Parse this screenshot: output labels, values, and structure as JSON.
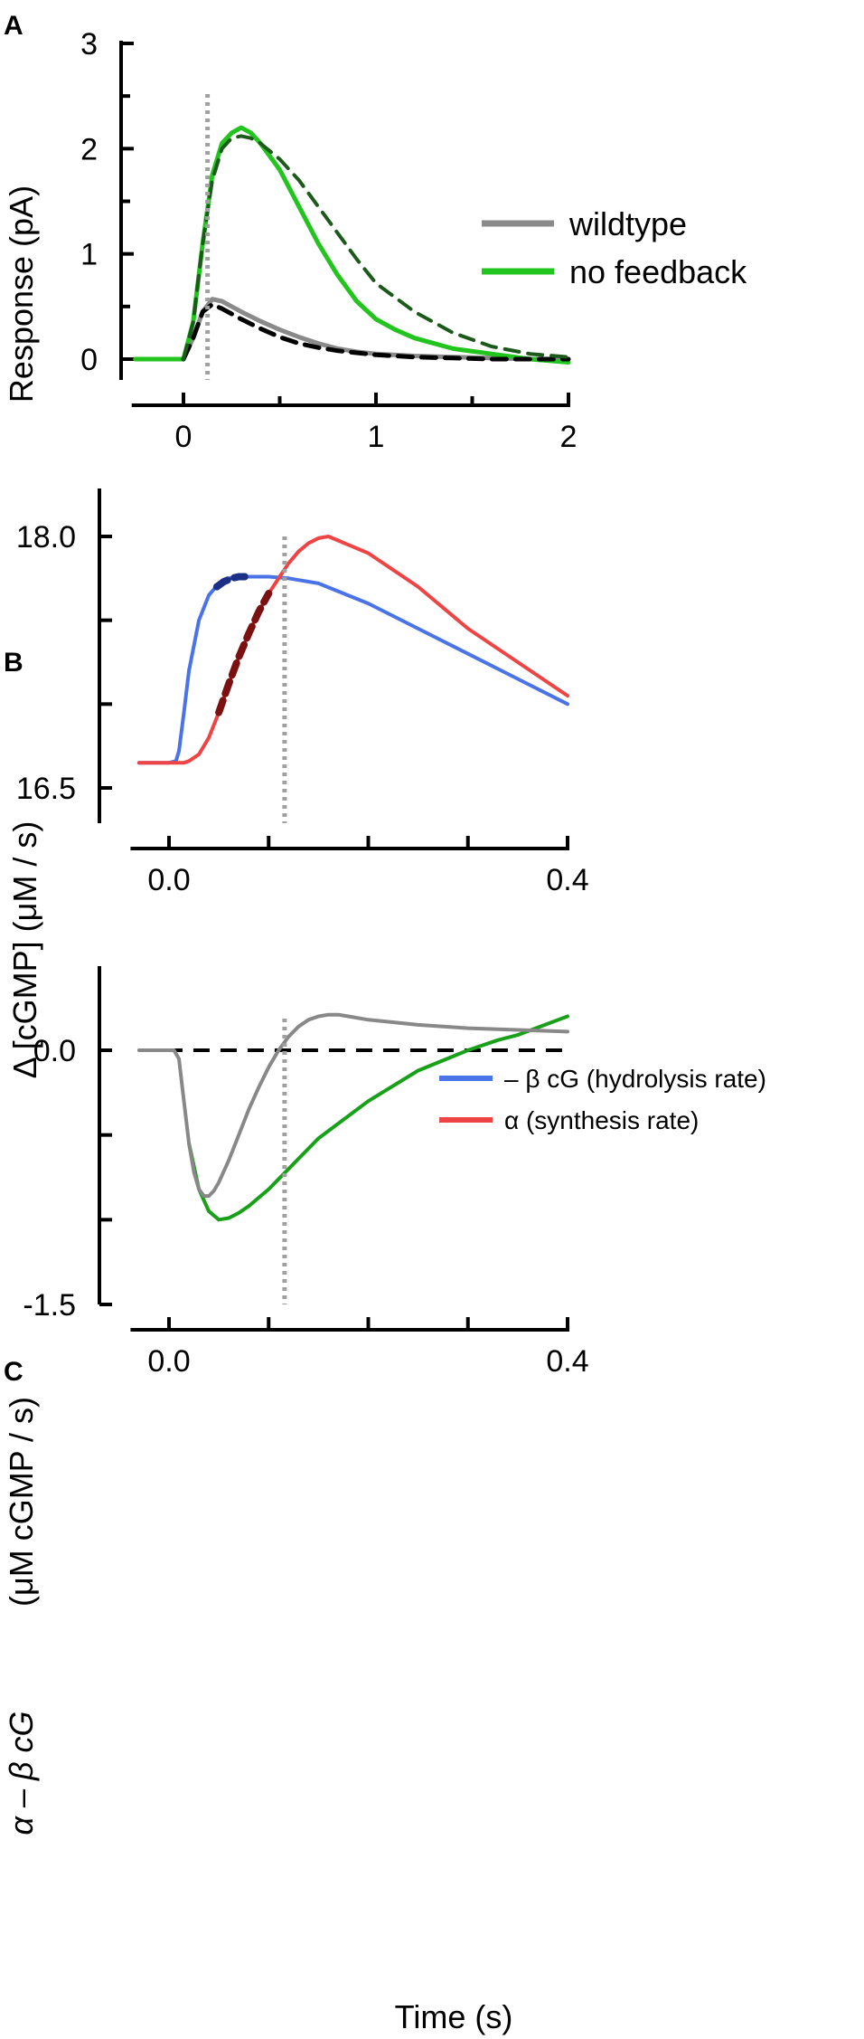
{
  "colors": {
    "wildtype": "#8a8a8a",
    "no_feedback": "#22c41e",
    "fit_wildtype": "#000000",
    "fit_no_feedback": "#1b5a1b",
    "hydrolysis": "#4b73e8",
    "synthesis": "#ee4444",
    "hydrolysis_dash": "#1a2f86",
    "synthesis_dash": "#7a1010",
    "diff_wildtype": "#888888",
    "diff_no_feedback": "#19a019",
    "marker": "#a0a0a0"
  },
  "chart_data": [
    {
      "panel": "A",
      "type": "line",
      "ylabel": "Response (pA)",
      "xlabel": "",
      "xlim": [
        -0.25,
        2.0
      ],
      "ylim": [
        -0.2,
        3.0
      ],
      "xticks": [
        0,
        1,
        2
      ],
      "xticklabels": [
        "0",
        "1",
        "2"
      ],
      "yticks": [
        0,
        1,
        2,
        3
      ],
      "yticklabels": [
        "0",
        "1",
        "2",
        "3"
      ],
      "marker_x": 0.125,
      "legend": [
        "wildtype",
        "no feedback"
      ],
      "legend_position": "top-right",
      "series": [
        {
          "name": "wildtype",
          "style": "solid",
          "x": [
            -0.25,
            0,
            0.05,
            0.1,
            0.15,
            0.2,
            0.25,
            0.3,
            0.4,
            0.5,
            0.6,
            0.7,
            0.8,
            0.9,
            1.0,
            1.2,
            1.4,
            1.6,
            1.8,
            2.0
          ],
          "y": [
            0,
            0,
            0.2,
            0.45,
            0.57,
            0.55,
            0.5,
            0.45,
            0.36,
            0.28,
            0.21,
            0.15,
            0.1,
            0.07,
            0.05,
            0.03,
            0.02,
            0.01,
            0.0,
            0.0
          ]
        },
        {
          "name": "no feedback",
          "style": "solid",
          "x": [
            -0.25,
            0,
            0.05,
            0.1,
            0.15,
            0.2,
            0.25,
            0.3,
            0.35,
            0.4,
            0.5,
            0.6,
            0.7,
            0.8,
            0.9,
            1.0,
            1.1,
            1.2,
            1.4,
            1.6,
            1.8,
            2.0
          ],
          "y": [
            0,
            0,
            0.35,
            1.1,
            1.75,
            2.05,
            2.15,
            2.2,
            2.15,
            2.05,
            1.8,
            1.45,
            1.1,
            0.8,
            0.55,
            0.38,
            0.28,
            0.2,
            0.1,
            0.05,
            0.0,
            -0.03
          ]
        },
        {
          "name": "wildtype fit",
          "style": "dashed",
          "x": [
            0,
            0.05,
            0.1,
            0.15,
            0.2,
            0.3,
            0.4,
            0.5,
            0.6,
            0.7,
            0.8,
            0.9,
            1.0,
            1.2,
            1.4,
            1.6,
            1.8,
            2.0
          ],
          "y": [
            0,
            0.2,
            0.45,
            0.52,
            0.48,
            0.38,
            0.29,
            0.21,
            0.15,
            0.11,
            0.08,
            0.06,
            0.04,
            0.02,
            0.01,
            0.0,
            0.0,
            0.0
          ]
        },
        {
          "name": "no feedback fit",
          "style": "dashed",
          "x": [
            0,
            0.05,
            0.1,
            0.15,
            0.2,
            0.25,
            0.3,
            0.35,
            0.4,
            0.5,
            0.6,
            0.7,
            0.8,
            0.9,
            1.0,
            1.2,
            1.4,
            1.6,
            1.8,
            2.0
          ],
          "y": [
            0,
            0.35,
            1.1,
            1.7,
            2.0,
            2.1,
            2.12,
            2.1,
            2.05,
            1.9,
            1.7,
            1.45,
            1.2,
            0.95,
            0.72,
            0.45,
            0.25,
            0.12,
            0.05,
            0.02
          ]
        }
      ]
    },
    {
      "panel": "B",
      "type": "line",
      "ylabel": "Δ [cGMP]  (μM / s)",
      "xlabel": "",
      "xlim": [
        -0.035,
        0.4
      ],
      "ylim": [
        16.3,
        18.35
      ],
      "xticks": [
        0,
        0.1,
        0.2,
        0.3,
        0.4
      ],
      "xticklabels": [
        "0.0",
        "",
        "",
        "",
        "0.4"
      ],
      "yticks": [
        16.5,
        17.0,
        17.5,
        18.0
      ],
      "yticklabels": [
        "16.5",
        "",
        "",
        "18.0"
      ],
      "marker_x": 0.116,
      "legend": [
        "– β cG (hydrolysis rate)",
        "α (synthesis rate)"
      ],
      "legend_position": "bottom-right",
      "series": [
        {
          "name": "– β cG (hydrolysis rate)",
          "style": "solid",
          "x": [
            -0.03,
            0.0,
            0.007,
            0.01,
            0.015,
            0.02,
            0.03,
            0.04,
            0.05,
            0.06,
            0.07,
            0.08,
            0.1,
            0.12,
            0.15,
            0.2,
            0.25,
            0.3,
            0.35,
            0.4
          ],
          "y": [
            16.65,
            16.65,
            16.66,
            16.72,
            16.95,
            17.2,
            17.5,
            17.65,
            17.72,
            17.75,
            17.76,
            17.76,
            17.76,
            17.75,
            17.72,
            17.6,
            17.45,
            17.3,
            17.15,
            17.0
          ]
        },
        {
          "name": "α (synthesis rate)",
          "style": "solid",
          "x": [
            -0.03,
            0.0,
            0.015,
            0.02,
            0.03,
            0.04,
            0.05,
            0.06,
            0.07,
            0.08,
            0.09,
            0.1,
            0.11,
            0.12,
            0.13,
            0.14,
            0.15,
            0.16,
            0.2,
            0.25,
            0.3,
            0.35,
            0.4
          ],
          "y": [
            16.65,
            16.65,
            16.65,
            16.66,
            16.7,
            16.8,
            16.95,
            17.12,
            17.28,
            17.42,
            17.55,
            17.66,
            17.75,
            17.84,
            17.91,
            17.96,
            17.99,
            18.0,
            17.9,
            17.7,
            17.45,
            17.25,
            17.05
          ]
        },
        {
          "name": "hydrolysis fit",
          "style": "dashed",
          "x": [
            0.048,
            0.055,
            0.063,
            0.07,
            0.076
          ],
          "y": [
            17.7,
            17.73,
            17.75,
            17.76,
            17.76
          ]
        },
        {
          "name": "synthesis fit",
          "style": "dashed",
          "x": [
            0.05,
            0.06,
            0.07,
            0.08,
            0.09,
            0.1
          ],
          "y": [
            16.95,
            17.12,
            17.28,
            17.42,
            17.55,
            17.66
          ]
        }
      ]
    },
    {
      "panel": "C",
      "type": "line",
      "ylabel_parts": [
        "α – β cG",
        "(μM cGMP / s)"
      ],
      "xlabel": "Time (s)",
      "xlim": [
        -0.035,
        0.4
      ],
      "ylim": [
        -1.5,
        0.5
      ],
      "xticks": [
        0,
        0.1,
        0.2,
        0.3,
        0.4
      ],
      "xticklabels": [
        "0.0",
        "",
        "",
        "",
        "0.4"
      ],
      "yticks": [
        -1.5,
        -1.0,
        -0.5,
        0.0
      ],
      "yticklabels": [
        "-1.5",
        "",
        "",
        "0.0"
      ],
      "marker_x": 0.116,
      "zero_line": true,
      "series": [
        {
          "name": "wildtype",
          "style": "solid",
          "x": [
            -0.03,
            0.005,
            0.01,
            0.015,
            0.02,
            0.025,
            0.03,
            0.035,
            0.04,
            0.045,
            0.05,
            0.06,
            0.07,
            0.08,
            0.09,
            0.1,
            0.11,
            0.12,
            0.13,
            0.14,
            0.15,
            0.16,
            0.17,
            0.18,
            0.2,
            0.25,
            0.3,
            0.35,
            0.4
          ],
          "y": [
            0,
            0,
            -0.05,
            -0.3,
            -0.55,
            -0.72,
            -0.82,
            -0.86,
            -0.86,
            -0.83,
            -0.78,
            -0.65,
            -0.5,
            -0.35,
            -0.22,
            -0.1,
            0.0,
            0.08,
            0.14,
            0.18,
            0.2,
            0.21,
            0.21,
            0.2,
            0.18,
            0.15,
            0.13,
            0.12,
            0.11
          ]
        },
        {
          "name": "no feedback",
          "style": "solid",
          "x": [
            0.02,
            0.03,
            0.04,
            0.05,
            0.06,
            0.07,
            0.08,
            0.1,
            0.12,
            0.15,
            0.2,
            0.25,
            0.3,
            0.33,
            0.35,
            0.4
          ],
          "y": [
            -0.55,
            -0.82,
            -0.95,
            -1.0,
            -0.99,
            -0.96,
            -0.92,
            -0.82,
            -0.7,
            -0.52,
            -0.3,
            -0.12,
            0.0,
            0.06,
            0.09,
            0.2
          ]
        }
      ]
    }
  ]
}
